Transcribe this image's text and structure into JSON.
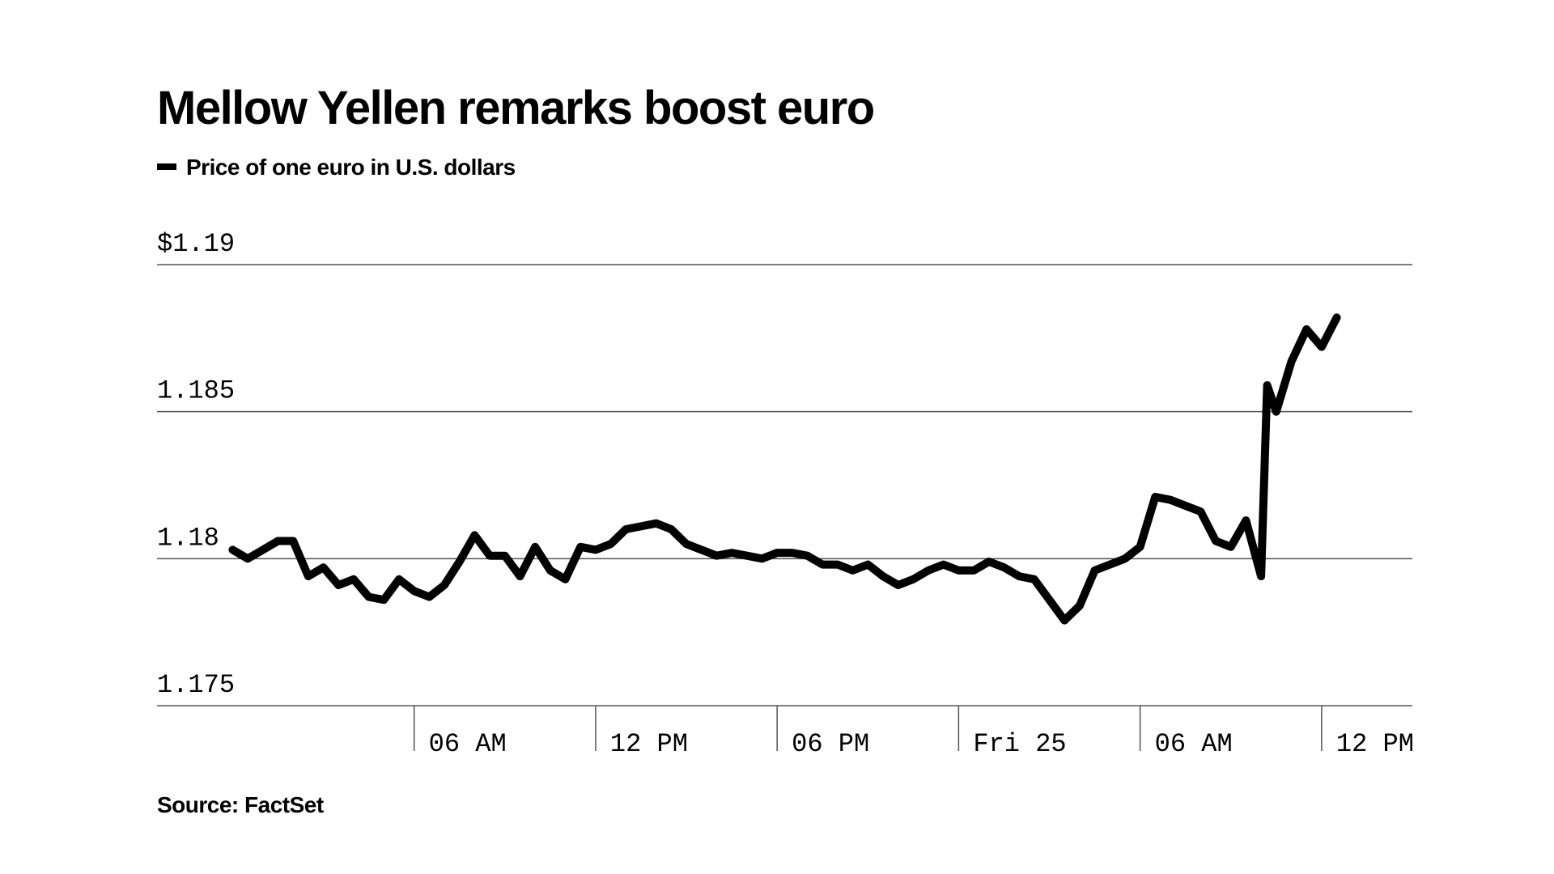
{
  "chart_data": {
    "type": "line",
    "title": "Mellow Yellen remarks boost euro",
    "source": "Source: FactSet",
    "x": [
      0,
      0.5,
      1,
      1.5,
      2,
      2.5,
      3,
      3.5,
      4,
      4.5,
      5,
      5.5,
      6,
      6.5,
      7,
      7.5,
      8,
      8.5,
      9,
      9.5,
      10,
      10.5,
      11,
      11.5,
      12,
      12.5,
      13,
      13.5,
      14,
      14.5,
      15,
      15.5,
      16,
      16.5,
      17,
      17.5,
      18,
      18.5,
      19,
      19.5,
      20,
      20.5,
      21,
      21.5,
      22,
      22.5,
      23,
      23.5,
      24,
      24.5,
      25,
      25.5,
      26,
      26.5,
      27,
      27.5,
      28,
      28.5,
      29,
      29.5,
      30,
      30.5,
      31,
      31.5,
      32,
      32.5,
      33,
      33.5,
      34,
      34.2,
      34.5,
      35,
      35.5,
      36,
      36.5
    ],
    "series": [
      {
        "name": "Price of one euro in U.S. dollars",
        "color": "#000000",
        "values": [
          1.1803,
          1.18,
          1.1803,
          1.1806,
          1.1806,
          1.1794,
          1.1797,
          1.1791,
          1.1793,
          1.1787,
          1.1786,
          1.1793,
          1.1789,
          1.1787,
          1.1791,
          1.1799,
          1.1808,
          1.1801,
          1.1801,
          1.1794,
          1.1804,
          1.1796,
          1.1793,
          1.1804,
          1.1803,
          1.1805,
          1.181,
          1.1811,
          1.1812,
          1.181,
          1.1805,
          1.1803,
          1.1801,
          1.1802,
          1.1801,
          1.18,
          1.1802,
          1.1802,
          1.1801,
          1.1798,
          1.1798,
          1.1796,
          1.1798,
          1.1794,
          1.1791,
          1.1793,
          1.1796,
          1.1798,
          1.1796,
          1.1796,
          1.1799,
          1.1797,
          1.1794,
          1.1793,
          1.1786,
          1.1779,
          1.1784,
          1.1796,
          1.1798,
          1.18,
          1.1804,
          1.1821,
          1.182,
          1.1818,
          1.1816,
          1.1806,
          1.1804,
          1.1813,
          1.1794,
          1.1859,
          1.185,
          1.1867,
          1.1878,
          1.1872,
          1.1882
        ]
      }
    ],
    "xlim": [
      -2.5,
      39
    ],
    "xticks": [
      {
        "value": 6,
        "label": "06 AM"
      },
      {
        "value": 12,
        "label": "12 PM"
      },
      {
        "value": 18,
        "label": "06 PM"
      },
      {
        "value": 24,
        "label": "Fri 25"
      },
      {
        "value": 30,
        "label": "06 AM"
      },
      {
        "value": 36,
        "label": "12 PM"
      }
    ],
    "ylim": [
      1.175,
      1.19
    ],
    "yticks": [
      1.175,
      1.18,
      1.185,
      {
        "value": 1.19,
        "label": "$1.19"
      }
    ],
    "grid": true
  }
}
